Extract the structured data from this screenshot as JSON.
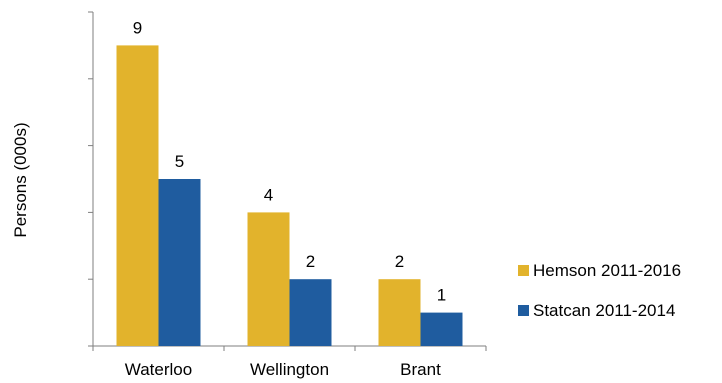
{
  "chart_data": {
    "type": "bar",
    "categories": [
      "Waterloo",
      "Wellington",
      "Brant"
    ],
    "series": [
      {
        "name": "Hemson 2011-2016",
        "values": [
          9,
          4,
          2
        ],
        "color": "#E2B32C"
      },
      {
        "name": "Statcan 2011-2014",
        "values": [
          5,
          2,
          1
        ],
        "color": "#1F5C9F"
      }
    ],
    "ylabel": "Persons (000s)",
    "ylim": [
      0,
      10
    ],
    "y_tick_step": 2,
    "y_tick_labels_shown": false,
    "data_labels": true,
    "grid": false,
    "legend_position": "right"
  }
}
